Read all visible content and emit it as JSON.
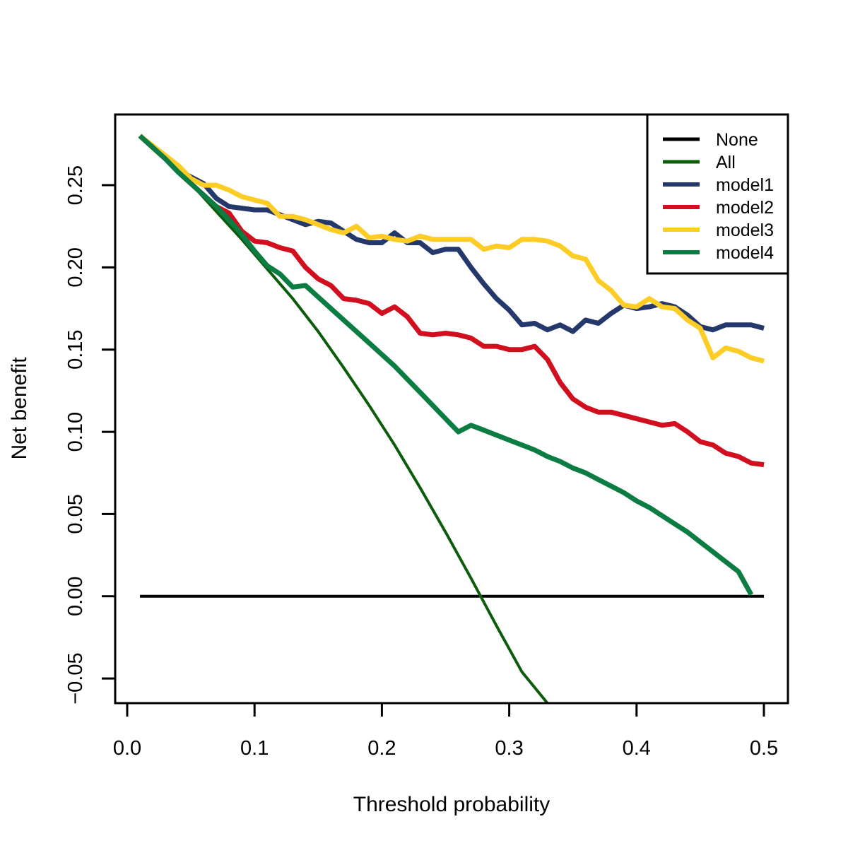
{
  "chart_data": {
    "type": "line",
    "title": "",
    "xlabel": "Threshold probability",
    "ylabel": "Net benefit",
    "xlim": [
      0.0,
      0.5
    ],
    "ylim": [
      -0.065,
      0.293
    ],
    "xticks": [
      0.0,
      0.1,
      0.2,
      0.3,
      0.4,
      0.5
    ],
    "xtick_labels": [
      "0.0",
      "0.1",
      "0.2",
      "0.3",
      "0.4",
      "0.5"
    ],
    "yticks": [
      -0.05,
      0.0,
      0.05,
      0.1,
      0.15,
      0.2,
      0.25
    ],
    "ytick_labels": [
      "−0.05",
      "0.00",
      "0.05",
      "0.10",
      "0.15",
      "0.20",
      "0.25"
    ],
    "grid": false,
    "legend_position": "top-right",
    "series": [
      {
        "name": "None",
        "color": "#000000",
        "width": 4,
        "x": [
          0.01,
          0.5
        ],
        "y": [
          0.0,
          0.0
        ]
      },
      {
        "name": "All",
        "color": "#0b5c0b",
        "width": 4,
        "x": [
          0.01,
          0.03,
          0.05,
          0.07,
          0.09,
          0.11,
          0.13,
          0.15,
          0.17,
          0.19,
          0.21,
          0.23,
          0.25,
          0.27,
          0.29,
          0.31,
          0.33
        ],
        "y": [
          0.28,
          0.266,
          0.251,
          0.234,
          0.217,
          0.199,
          0.181,
          0.161,
          0.139,
          0.116,
          0.092,
          0.066,
          0.039,
          0.011,
          -0.018,
          -0.046,
          -0.065
        ]
      },
      {
        "name": "model1",
        "color": "#24386b",
        "width": 7,
        "x": [
          0.01,
          0.02,
          0.03,
          0.04,
          0.05,
          0.06,
          0.07,
          0.08,
          0.09,
          0.1,
          0.11,
          0.12,
          0.13,
          0.14,
          0.15,
          0.16,
          0.17,
          0.18,
          0.19,
          0.2,
          0.21,
          0.22,
          0.23,
          0.24,
          0.25,
          0.26,
          0.27,
          0.28,
          0.29,
          0.3,
          0.31,
          0.32,
          0.33,
          0.34,
          0.35,
          0.36,
          0.37,
          0.38,
          0.39,
          0.4,
          0.41,
          0.42,
          0.43,
          0.44,
          0.45,
          0.46,
          0.47,
          0.48,
          0.49,
          0.5
        ],
        "y": [
          0.28,
          0.273,
          0.266,
          0.259,
          0.255,
          0.251,
          0.242,
          0.237,
          0.236,
          0.235,
          0.235,
          0.232,
          0.229,
          0.226,
          0.228,
          0.227,
          0.222,
          0.217,
          0.215,
          0.215,
          0.221,
          0.215,
          0.215,
          0.209,
          0.211,
          0.211,
          0.2,
          0.19,
          0.181,
          0.174,
          0.165,
          0.166,
          0.162,
          0.165,
          0.161,
          0.168,
          0.166,
          0.172,
          0.177,
          0.175,
          0.176,
          0.178,
          0.176,
          0.171,
          0.164,
          0.162,
          0.165,
          0.165,
          0.165,
          0.163
        ]
      },
      {
        "name": "model2",
        "color": "#d10f1e",
        "width": 7,
        "x": [
          0.01,
          0.02,
          0.03,
          0.04,
          0.05,
          0.06,
          0.07,
          0.08,
          0.09,
          0.1,
          0.11,
          0.12,
          0.13,
          0.14,
          0.15,
          0.16,
          0.17,
          0.18,
          0.19,
          0.2,
          0.21,
          0.22,
          0.23,
          0.24,
          0.25,
          0.26,
          0.27,
          0.28,
          0.29,
          0.3,
          0.31,
          0.32,
          0.33,
          0.34,
          0.35,
          0.36,
          0.37,
          0.38,
          0.39,
          0.4,
          0.41,
          0.42,
          0.43,
          0.44,
          0.45,
          0.46,
          0.47,
          0.48,
          0.49,
          0.5
        ],
        "y": [
          0.28,
          0.273,
          0.266,
          0.258,
          0.251,
          0.244,
          0.237,
          0.233,
          0.222,
          0.216,
          0.215,
          0.212,
          0.21,
          0.2,
          0.193,
          0.189,
          0.181,
          0.18,
          0.178,
          0.172,
          0.176,
          0.17,
          0.16,
          0.159,
          0.16,
          0.159,
          0.157,
          0.152,
          0.152,
          0.15,
          0.15,
          0.152,
          0.144,
          0.13,
          0.12,
          0.115,
          0.112,
          0.112,
          0.11,
          0.108,
          0.106,
          0.104,
          0.105,
          0.1,
          0.094,
          0.092,
          0.087,
          0.085,
          0.081,
          0.08
        ]
      },
      {
        "name": "model3",
        "color": "#fdcd25",
        "width": 7,
        "x": [
          0.01,
          0.02,
          0.03,
          0.04,
          0.05,
          0.06,
          0.07,
          0.08,
          0.09,
          0.1,
          0.11,
          0.12,
          0.13,
          0.14,
          0.15,
          0.16,
          0.17,
          0.18,
          0.19,
          0.2,
          0.21,
          0.22,
          0.23,
          0.24,
          0.25,
          0.26,
          0.27,
          0.28,
          0.29,
          0.3,
          0.31,
          0.32,
          0.33,
          0.34,
          0.35,
          0.36,
          0.37,
          0.38,
          0.39,
          0.4,
          0.41,
          0.42,
          0.43,
          0.44,
          0.45,
          0.46,
          0.47,
          0.48,
          0.49,
          0.5
        ],
        "y": [
          0.28,
          0.274,
          0.268,
          0.262,
          0.254,
          0.25,
          0.25,
          0.247,
          0.243,
          0.241,
          0.239,
          0.231,
          0.231,
          0.229,
          0.226,
          0.223,
          0.221,
          0.225,
          0.218,
          0.219,
          0.217,
          0.216,
          0.219,
          0.217,
          0.217,
          0.217,
          0.217,
          0.211,
          0.213,
          0.212,
          0.217,
          0.217,
          0.216,
          0.213,
          0.207,
          0.205,
          0.192,
          0.186,
          0.177,
          0.176,
          0.181,
          0.176,
          0.175,
          0.168,
          0.163,
          0.145,
          0.151,
          0.149,
          0.145,
          0.143
        ]
      },
      {
        "name": "model4",
        "color": "#0b7d42",
        "width": 7,
        "x": [
          0.01,
          0.02,
          0.03,
          0.04,
          0.05,
          0.06,
          0.07,
          0.08,
          0.09,
          0.1,
          0.11,
          0.12,
          0.13,
          0.14,
          0.15,
          0.16,
          0.17,
          0.18,
          0.19,
          0.2,
          0.21,
          0.22,
          0.23,
          0.24,
          0.25,
          0.26,
          0.27,
          0.28,
          0.29,
          0.3,
          0.31,
          0.32,
          0.33,
          0.34,
          0.35,
          0.36,
          0.37,
          0.38,
          0.39,
          0.4,
          0.41,
          0.42,
          0.43,
          0.44,
          0.45,
          0.46,
          0.47,
          0.48,
          0.49
        ],
        "y": [
          0.28,
          0.273,
          0.266,
          0.258,
          0.251,
          0.244,
          0.237,
          0.229,
          0.22,
          0.21,
          0.201,
          0.196,
          0.188,
          0.189,
          0.182,
          0.175,
          0.168,
          0.161,
          0.154,
          0.147,
          0.14,
          0.132,
          0.124,
          0.116,
          0.108,
          0.1,
          0.104,
          0.101,
          0.098,
          0.095,
          0.092,
          0.089,
          0.085,
          0.082,
          0.078,
          0.075,
          0.071,
          0.067,
          0.063,
          0.058,
          0.054,
          0.049,
          0.044,
          0.039,
          0.033,
          0.027,
          0.021,
          0.015,
          0.001
        ]
      }
    ]
  }
}
